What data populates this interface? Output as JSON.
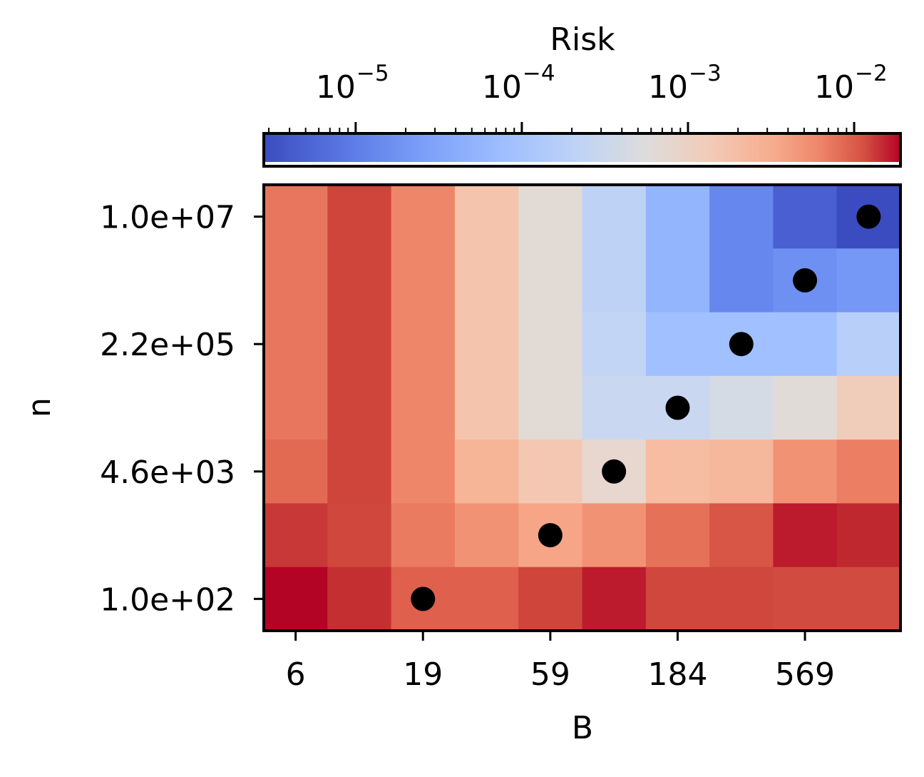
{
  "chart_data": {
    "type": "heatmap",
    "xlabel": "B",
    "ylabel": "n",
    "colorbar": {
      "label": "Risk",
      "scale": "log",
      "colormap": "coolwarm",
      "tick_labels": [
        "10",
        "10",
        "10",
        "10"
      ],
      "tick_exponents": [
        "−5",
        "−4",
        "−3",
        "−2"
      ],
      "tick_values": [
        1e-05,
        0.0001,
        0.001,
        0.01
      ],
      "range": [
        2.8e-06,
        0.019
      ]
    },
    "x_tick_labels": [
      "6",
      "19",
      "59",
      "184",
      "569"
    ],
    "y_tick_labels": [
      "1.0e+07",
      "2.2e+05",
      "4.6e+03",
      "1.0e+02"
    ],
    "columns": 10,
    "rows": 7,
    "cell_colors": [
      [
        "#e8765e",
        "#cf453b",
        "#ee8769",
        "#f5c4ac",
        "#e2dad5",
        "#bed2f6",
        "#93b5fe",
        "#6687ed",
        "#4a5fd1",
        "#3b4cc0"
      ],
      [
        "#e8765e",
        "#cf453b",
        "#ee8769",
        "#f5c4ac",
        "#e2dad5",
        "#bed2f6",
        "#93b5fe",
        "#6687ed",
        "#6e90f2",
        "#7597f5"
      ],
      [
        "#e8765e",
        "#cf453b",
        "#ee8769",
        "#f5c4ac",
        "#e2dad5",
        "#c2d5f4",
        "#a1c0ff",
        "#a1c0ff",
        "#a1c0ff",
        "#b7cff9"
      ],
      [
        "#e8765e",
        "#cf453b",
        "#ee8769",
        "#f5c4ac",
        "#e2dad5",
        "#c9d7f0",
        "#c9d7f0",
        "#d5dbe5",
        "#e0dbd7",
        "#f0cdbb"
      ],
      [
        "#e26952",
        "#cf453b",
        "#ee8769",
        "#f6b597",
        "#f3c7b1",
        "#e7d7ce",
        "#f6bda2",
        "#f5b89d",
        "#f29274",
        "#ec7f63"
      ],
      [
        "#c83836",
        "#d0473d",
        "#ea7b60",
        "#f29274",
        "#f6a586",
        "#f29274",
        "#e57258",
        "#d85646",
        "#bb1b2c",
        "#c0282f"
      ],
      [
        "#b40426",
        "#c43032",
        "#de604d",
        "#de604d",
        "#cf453b",
        "#bb1b2c",
        "#d0473d",
        "#d0473d",
        "#d24b40",
        "#d24b40"
      ]
    ],
    "optimum_points": [
      {
        "column": 9,
        "row": 0
      },
      {
        "column": 8,
        "row": 1
      },
      {
        "column": 7,
        "row": 2
      },
      {
        "column": 6,
        "row": 3
      },
      {
        "column": 5,
        "row": 4
      },
      {
        "column": 4,
        "row": 5
      },
      {
        "column": 2,
        "row": 6
      }
    ],
    "marker_color": "#000000"
  }
}
